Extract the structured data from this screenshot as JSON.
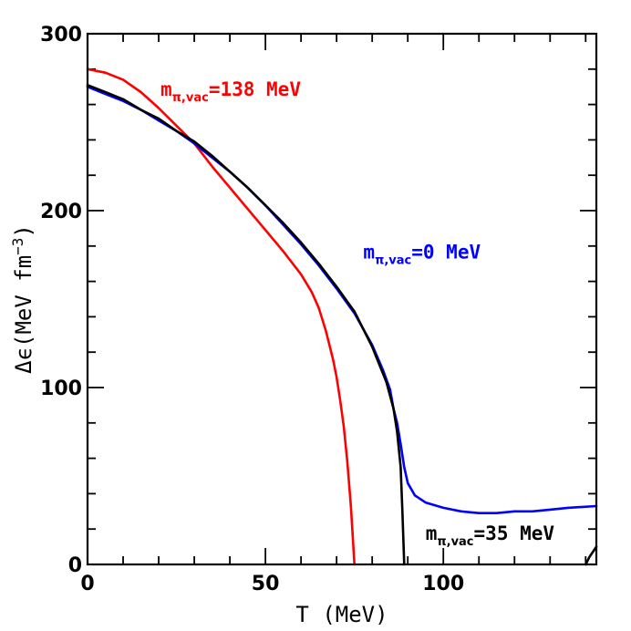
{
  "chart_data": {
    "type": "line",
    "xlabel": "T (MeV)",
    "ylabel_parts": {
      "main": "Δϵ(MeV fm",
      "sup": "−3",
      "close": ")"
    },
    "xlim": [
      0,
      143
    ],
    "ylim": [
      0,
      300
    ],
    "x_ticks": [
      0,
      50,
      100
    ],
    "y_ticks": [
      0,
      100,
      200,
      300
    ],
    "x_tick_labels": [
      "0",
      "50",
      "100"
    ],
    "y_tick_labels": [
      "0",
      "100",
      "200",
      "300"
    ],
    "grid": false,
    "series": [
      {
        "color": "#ff0000",
        "points": [
          [
            0,
            280
          ],
          [
            5,
            278
          ],
          [
            10,
            274
          ],
          [
            15,
            267
          ],
          [
            20,
            258
          ],
          [
            25,
            248
          ],
          [
            30,
            238
          ],
          [
            35,
            225
          ],
          [
            40,
            213
          ],
          [
            45,
            201
          ],
          [
            50,
            189
          ],
          [
            55,
            177
          ],
          [
            60,
            164
          ],
          [
            63,
            154
          ],
          [
            65,
            145
          ],
          [
            67,
            132
          ],
          [
            69,
            116
          ],
          [
            70,
            106
          ],
          [
            71,
            93
          ],
          [
            72,
            78
          ],
          [
            73,
            58
          ],
          [
            74,
            33
          ],
          [
            74.5,
            17
          ],
          [
            75,
            0
          ]
        ]
      },
      {
        "color": "#0000ff",
        "points": [
          [
            0,
            270
          ],
          [
            5,
            266
          ],
          [
            10,
            262
          ],
          [
            15,
            257
          ],
          [
            20,
            251
          ],
          [
            25,
            245
          ],
          [
            30,
            238
          ],
          [
            35,
            230
          ],
          [
            40,
            222
          ],
          [
            45,
            213
          ],
          [
            50,
            203
          ],
          [
            55,
            192
          ],
          [
            60,
            181
          ],
          [
            65,
            169
          ],
          [
            70,
            156
          ],
          [
            75,
            142
          ],
          [
            80,
            124
          ],
          [
            83,
            110
          ],
          [
            85,
            99
          ],
          [
            86,
            88
          ],
          [
            87,
            80
          ],
          [
            88,
            68
          ],
          [
            89,
            55
          ],
          [
            90,
            46
          ],
          [
            92,
            39
          ],
          [
            95,
            35
          ],
          [
            100,
            32
          ],
          [
            105,
            30
          ],
          [
            110,
            29
          ],
          [
            115,
            29
          ],
          [
            120,
            30
          ],
          [
            125,
            30
          ],
          [
            130,
            31
          ],
          [
            135,
            32
          ],
          [
            143,
            33
          ]
        ]
      },
      {
        "color": "#000000",
        "points": [
          [
            0,
            271
          ],
          [
            5,
            267
          ],
          [
            10,
            263
          ],
          [
            15,
            257
          ],
          [
            20,
            252
          ],
          [
            25,
            245
          ],
          [
            30,
            239
          ],
          [
            35,
            231
          ],
          [
            40,
            222
          ],
          [
            45,
            213
          ],
          [
            50,
            203
          ],
          [
            55,
            193
          ],
          [
            60,
            182
          ],
          [
            65,
            170
          ],
          [
            70,
            157
          ],
          [
            75,
            143
          ],
          [
            80,
            123
          ],
          [
            84,
            103
          ],
          [
            86,
            88
          ],
          [
            87,
            75
          ],
          [
            88,
            55
          ],
          [
            88.5,
            30
          ],
          [
            89,
            0
          ]
        ]
      },
      {
        "color": "#000000",
        "points": [
          [
            140,
            0
          ],
          [
            141,
            4
          ],
          [
            142,
            7
          ],
          [
            143,
            10
          ]
        ]
      }
    ],
    "annotations": [
      {
        "main": "m",
        "sub": "π,vac",
        "rest": "=138 MeV",
        "color": "#ff0000",
        "x": 20.5,
        "y": 265
      },
      {
        "main": "m",
        "sub": "π,vac",
        "rest": "=0 MeV",
        "color": "#0000ff",
        "x": 77.5,
        "y": 173
      },
      {
        "main": "m",
        "sub": "π,vac",
        "rest": "=35 MeV",
        "color": "#000000",
        "x": 95,
        "y": 14
      }
    ]
  }
}
